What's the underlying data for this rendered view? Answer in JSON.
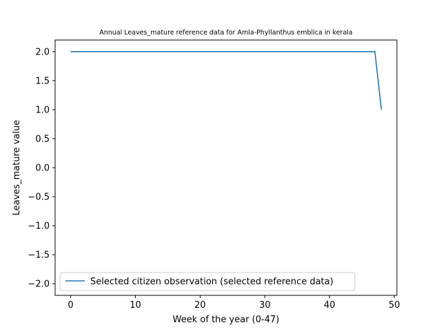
{
  "chart_data": {
    "type": "line",
    "title": "Annual Leaves_mature reference data for Amla-Phyllanthus emblica in kerala",
    "xlabel": "Week of the year (0-47)",
    "ylabel": "Leaves_mature value",
    "xlim": [
      -2.4,
      50.4
    ],
    "ylim": [
      -2.2,
      2.2
    ],
    "x_ticks": [
      0,
      10,
      20,
      30,
      40,
      50
    ],
    "y_ticks": [
      -2.0,
      -1.5,
      -1.0,
      -0.5,
      0.0,
      0.5,
      1.0,
      1.5,
      2.0
    ],
    "x_tick_labels": [
      "0",
      "10",
      "20",
      "30",
      "40",
      "50"
    ],
    "y_tick_labels": [
      "−2.0",
      "−1.5",
      "−1.0",
      "−0.5",
      "0.0",
      "0.5",
      "1.0",
      "1.5",
      "2.0"
    ],
    "grid": false,
    "legend_position": "lower-left",
    "series": [
      {
        "name": "Selected citizen observation (selected reference data)",
        "color": "#1f77b4",
        "x": [
          0,
          47,
          48
        ],
        "y": [
          2.0,
          2.0,
          1.0
        ]
      }
    ]
  }
}
